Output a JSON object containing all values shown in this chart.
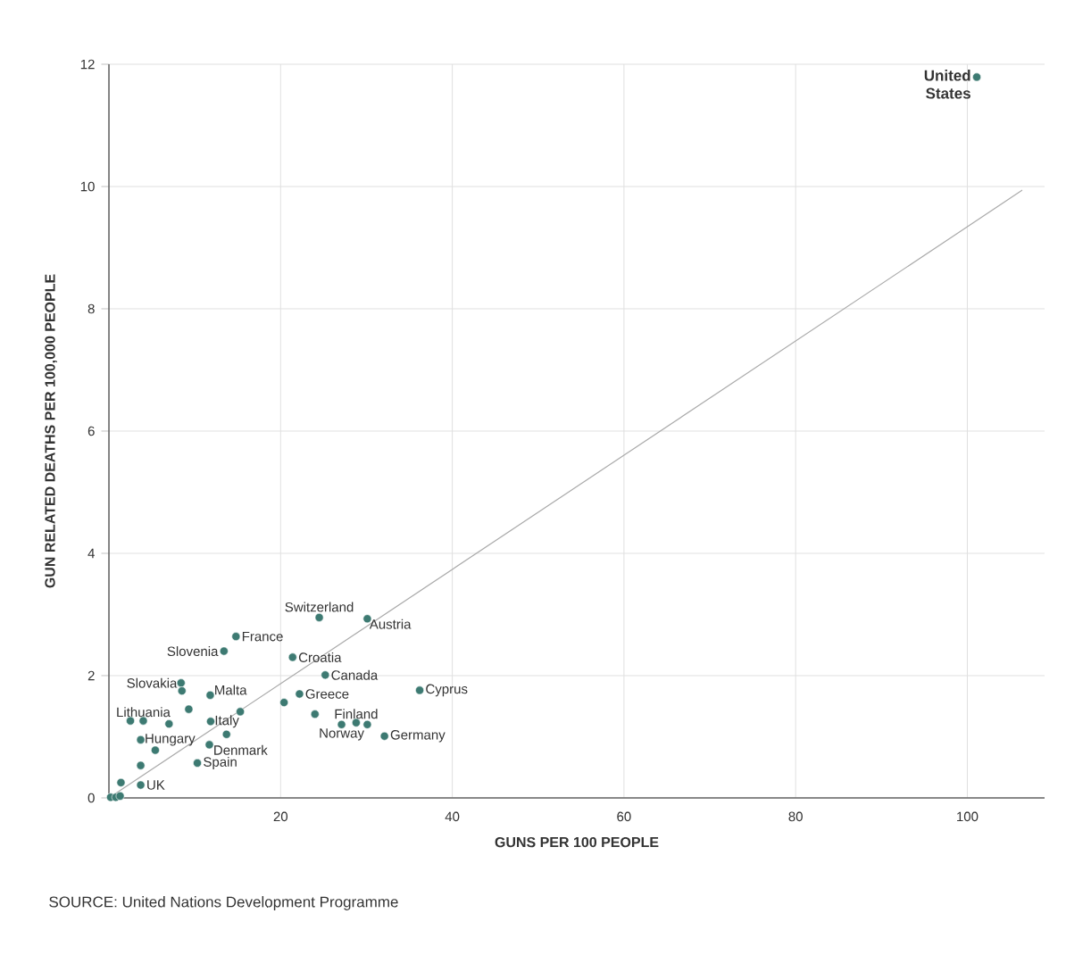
{
  "chart_data": {
    "type": "scatter",
    "xlabel": "GUNS PER 100 PEOPLE",
    "ylabel": "GUN RELATED DEATHS PER 100,000 PEOPLE",
    "xlim": [
      0,
      109
    ],
    "ylim": [
      0,
      12
    ],
    "xticks": [
      20,
      40,
      60,
      80,
      100
    ],
    "yticks": [
      0,
      2,
      4,
      6,
      8,
      10,
      12
    ],
    "grid": true,
    "marker": "circle",
    "series": [
      {
        "color": "#3d7a72",
        "x": [
          101.1,
          24.5,
          30.1,
          14.8,
          13.4,
          21.4,
          25.2,
          8.4,
          8.5,
          11.8,
          36.2,
          22.2,
          20.4,
          2.5,
          4.0,
          7.0,
          9.3,
          11.85,
          15.3,
          13.7,
          24.0,
          27.1,
          28.8,
          30.1,
          32.1,
          3.7,
          5.4,
          11.7,
          10.3,
          3.7,
          1.4,
          3.7,
          0.2,
          0.8,
          1.3
        ],
        "values": [
          11.79,
          2.95,
          2.93,
          2.64,
          2.4,
          2.3,
          2.01,
          1.88,
          1.75,
          1.68,
          1.76,
          1.7,
          1.56,
          1.26,
          1.26,
          1.21,
          1.45,
          1.25,
          1.41,
          1.04,
          1.37,
          1.2,
          1.23,
          1.2,
          1.01,
          0.95,
          0.78,
          0.87,
          0.57,
          0.53,
          0.25,
          0.21,
          0.01,
          0.01,
          0.03
        ]
      },
      {
        "type": "line",
        "color": "#aaaaaa",
        "marker": "none",
        "x": [
          0,
          106.4
        ],
        "values": [
          0,
          9.94
        ]
      }
    ],
    "annotations": [
      {
        "text": "United States",
        "x": 101.1,
        "y": 11.79
      },
      {
        "text": "Switzerland",
        "x": 24.5,
        "y": 2.95
      },
      {
        "text": "Austria",
        "x": 30.1,
        "y": 2.93
      },
      {
        "text": "France",
        "x": 14.8,
        "y": 2.64
      },
      {
        "text": "Slovenia",
        "x": 13.4,
        "y": 2.4
      },
      {
        "text": "Croatia",
        "x": 21.4,
        "y": 2.3
      },
      {
        "text": "Canada",
        "x": 25.2,
        "y": 2.01
      },
      {
        "text": "Slovakia",
        "x": 8.4,
        "y": 1.88
      },
      {
        "text": "Malta",
        "x": 11.8,
        "y": 1.68
      },
      {
        "text": "Cyprus",
        "x": 36.2,
        "y": 1.76
      },
      {
        "text": "Greece",
        "x": 22.2,
        "y": 1.7
      },
      {
        "text": "Lithuania",
        "x": 4.0,
        "y": 1.26
      },
      {
        "text": "Italy",
        "x": 11.85,
        "y": 1.25
      },
      {
        "text": "Finland",
        "x": 28.8,
        "y": 1.23
      },
      {
        "text": "Norway",
        "x": 27.1,
        "y": 1.2
      },
      {
        "text": "Germany",
        "x": 32.1,
        "y": 1.01
      },
      {
        "text": "Hungary",
        "x": 3.7,
        "y": 0.95
      },
      {
        "text": "Denmark",
        "x": 11.7,
        "y": 0.87
      },
      {
        "text": "Spain",
        "x": 10.3,
        "y": 0.57
      },
      {
        "text": "UK",
        "x": 3.7,
        "y": 0.21
      },
      "SOURCE: United Nations Development Programme"
    ]
  }
}
